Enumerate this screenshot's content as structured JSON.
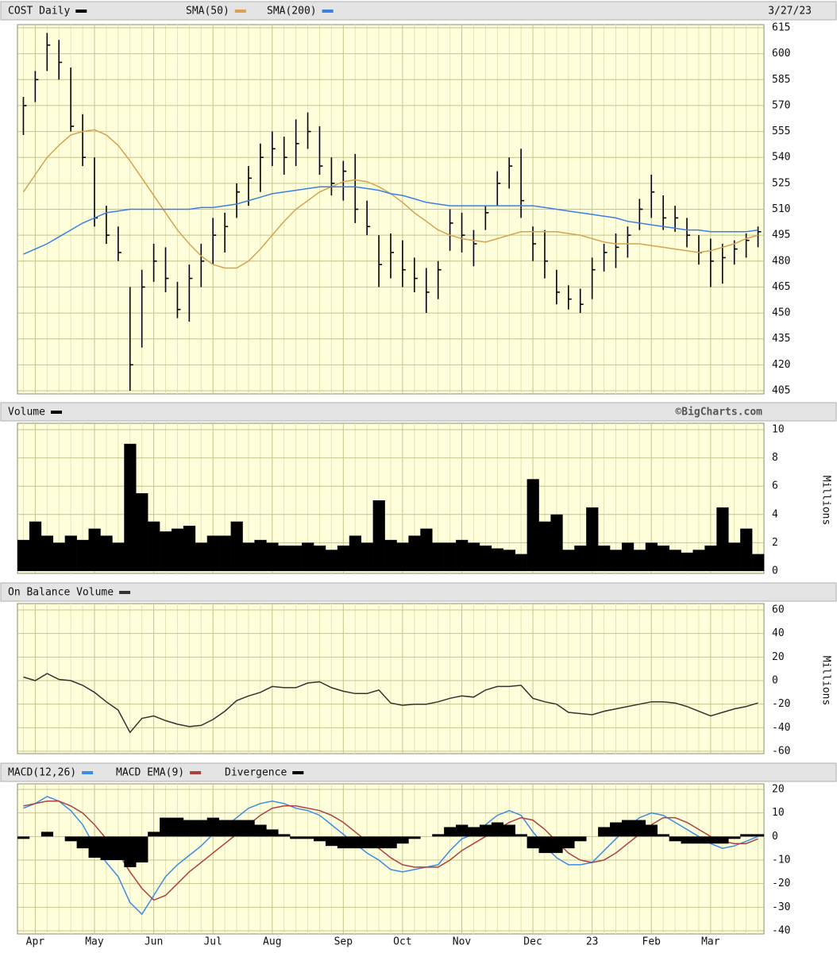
{
  "chart_data": [
    {
      "type": "ohlc",
      "date": "3/27/23",
      "ylim": [
        405,
        615
      ],
      "yticks": [
        405,
        420,
        435,
        450,
        465,
        480,
        495,
        510,
        525,
        540,
        555,
        570,
        585,
        600,
        615
      ],
      "grid": true,
      "series": [
        {
          "name": "COST Daily",
          "color": "#000000",
          "high": [
            575,
            590,
            612,
            608,
            592,
            565,
            540,
            512,
            500,
            465,
            475,
            490,
            488,
            468,
            478,
            490,
            505,
            508,
            525,
            535,
            548,
            555,
            552,
            562,
            566,
            558,
            540,
            538,
            542,
            515,
            495,
            496,
            492,
            482,
            476,
            480,
            510,
            508,
            498,
            512,
            532,
            540,
            545,
            500,
            498,
            475,
            466,
            464,
            482,
            490,
            496,
            500,
            516,
            530,
            518,
            512,
            505,
            495,
            493,
            490,
            492,
            496,
            500
          ],
          "low": [
            553,
            572,
            590,
            585,
            555,
            535,
            500,
            490,
            480,
            405,
            430,
            468,
            462,
            447,
            445,
            465,
            478,
            485,
            505,
            512,
            520,
            535,
            530,
            535,
            545,
            530,
            518,
            515,
            502,
            495,
            465,
            470,
            465,
            462,
            450,
            458,
            486,
            485,
            477,
            498,
            512,
            522,
            505,
            480,
            470,
            455,
            452,
            450,
            458,
            474,
            476,
            482,
            498,
            505,
            498,
            497,
            488,
            478,
            465,
            467,
            478,
            482,
            488
          ],
          "close": [
            570,
            585,
            605,
            595,
            558,
            540,
            505,
            495,
            485,
            420,
            465,
            480,
            470,
            452,
            470,
            480,
            495,
            500,
            520,
            528,
            540,
            545,
            540,
            548,
            555,
            535,
            525,
            532,
            510,
            500,
            478,
            485,
            475,
            470,
            462,
            475,
            502,
            495,
            490,
            508,
            525,
            535,
            515,
            490,
            480,
            462,
            458,
            455,
            475,
            485,
            488,
            495,
            510,
            520,
            505,
            505,
            495,
            485,
            480,
            482,
            487,
            492,
            497
          ]
        },
        {
          "name": "SMA(50)",
          "color": "#d8a24e",
          "values": [
            520,
            530,
            540,
            547,
            553,
            555,
            556,
            553,
            547,
            538,
            528,
            518,
            508,
            498,
            490,
            483,
            478,
            476,
            476,
            480,
            487,
            495,
            503,
            510,
            515,
            520,
            523,
            526,
            527,
            526,
            523,
            519,
            514,
            508,
            503,
            498,
            495,
            493,
            492,
            491,
            493,
            495,
            497,
            497,
            497,
            497,
            496,
            495,
            493,
            491,
            490,
            490,
            490,
            489,
            488,
            487,
            486,
            485,
            486,
            488,
            490,
            493,
            495
          ]
        },
        {
          "name": "SMA(200)",
          "color": "#3a80e4",
          "values": [
            484,
            487,
            490,
            494,
            498,
            502,
            505,
            508,
            509,
            510,
            510,
            510,
            510,
            510,
            510,
            511,
            511,
            512,
            513,
            515,
            517,
            519,
            520,
            521,
            522,
            523,
            523,
            523,
            523,
            522,
            521,
            519,
            518,
            516,
            514,
            513,
            512,
            512,
            512,
            512,
            512,
            512,
            512,
            512,
            511,
            510,
            509,
            508,
            507,
            506,
            505,
            503,
            502,
            501,
            500,
            499,
            498,
            498,
            497,
            497,
            497,
            497,
            498
          ]
        }
      ]
    },
    {
      "type": "bar",
      "credit": "©BigCharts.com",
      "y_label": "Millions",
      "ylim": [
        0,
        10
      ],
      "yticks": [
        0,
        2,
        4,
        6,
        8,
        10
      ],
      "grid": true,
      "series": [
        {
          "name": "Volume",
          "color": "#000000",
          "values": [
            2.2,
            3.5,
            2.5,
            2.0,
            2.5,
            2.2,
            3.0,
            2.5,
            2.0,
            9.0,
            5.5,
            3.5,
            2.8,
            3.0,
            3.2,
            2.0,
            2.5,
            2.5,
            3.5,
            2.0,
            2.2,
            2.0,
            1.8,
            1.8,
            2.0,
            1.8,
            1.5,
            1.8,
            2.5,
            2.0,
            5.0,
            2.2,
            2.0,
            2.5,
            3.0,
            2.0,
            2.0,
            2.2,
            2.0,
            1.8,
            1.6,
            1.5,
            1.2,
            6.5,
            3.5,
            4.0,
            1.5,
            1.8,
            4.5,
            1.8,
            1.5,
            2.0,
            1.5,
            2.0,
            1.8,
            1.5,
            1.3,
            1.5,
            1.8,
            4.5,
            2.0,
            3.0,
            1.2
          ]
        }
      ]
    },
    {
      "type": "line",
      "y_label": "Millions",
      "ylim": [
        -60,
        60
      ],
      "yticks": [
        -60,
        -40,
        -20,
        0,
        20,
        40,
        60
      ],
      "grid": true,
      "series": [
        {
          "name": "On Balance Volume",
          "color": "#333333",
          "values": [
            3,
            0,
            6,
            1,
            0,
            -4,
            -10,
            -18,
            -25,
            -44,
            -32,
            -30,
            -34,
            -37,
            -39,
            -38,
            -33,
            -26,
            -17,
            -13,
            -10,
            -5,
            -6,
            -6,
            -2,
            -1,
            -6,
            -9,
            -11,
            -11,
            -8,
            -19,
            -21,
            -20,
            -20,
            -18,
            -15,
            -13,
            -14,
            -8,
            -5,
            -5,
            -4,
            -15,
            -18,
            -20,
            -27,
            -28,
            -29,
            -26,
            -24,
            -22,
            -20,
            -18,
            -18,
            -19,
            -22,
            -26,
            -30,
            -27,
            -24,
            -22,
            -19
          ]
        }
      ]
    },
    {
      "type": "line",
      "ylim": [
        -40,
        20
      ],
      "yticks": [
        -40,
        -30,
        -20,
        -10,
        0,
        10,
        20
      ],
      "grid": true,
      "categories": [
        null,
        "Apr",
        null,
        null,
        null,
        null,
        "May",
        null,
        null,
        null,
        null,
        "Jun",
        null,
        null,
        null,
        null,
        "Jul",
        null,
        null,
        null,
        null,
        "Aug",
        null,
        null,
        null,
        null,
        null,
        "Sep",
        null,
        null,
        null,
        null,
        "Oct",
        null,
        null,
        null,
        null,
        "Nov",
        null,
        null,
        null,
        null,
        null,
        "Dec",
        null,
        null,
        null,
        null,
        "23",
        null,
        null,
        null,
        null,
        "Feb",
        null,
        null,
        null,
        null,
        "Mar",
        null,
        null,
        null,
        null
      ],
      "series": [
        {
          "name": "MACD(12,26)",
          "color": "#3a8ce6",
          "values": [
            12,
            14,
            17,
            15,
            11,
            5,
            -4,
            -11,
            -17,
            -28,
            -33,
            -25,
            -17,
            -12,
            -8,
            -4,
            1,
            4,
            8,
            12,
            14,
            15,
            14,
            12,
            11,
            9,
            5,
            1,
            -3,
            -7,
            -10,
            -14,
            -15,
            -14,
            -13,
            -12,
            -6,
            -1,
            1,
            5,
            9,
            11,
            9,
            2,
            -4,
            -9,
            -12,
            -12,
            -11,
            -6,
            -1,
            4,
            8,
            10,
            9,
            6,
            3,
            0,
            -3,
            -5,
            -4,
            -2,
            0
          ]
        },
        {
          "name": "MACD EMA(9)",
          "color": "#b04040",
          "values": [
            13,
            14,
            15,
            15,
            13,
            10,
            5,
            -1,
            -7,
            -15,
            -22,
            -27,
            -25,
            -20,
            -15,
            -11,
            -7,
            -3,
            1,
            5,
            9,
            12,
            13,
            13,
            12,
            11,
            9,
            6,
            2,
            -2,
            -5,
            -9,
            -12,
            -13,
            -13,
            -13,
            -10,
            -6,
            -3,
            0,
            3,
            6,
            8,
            7,
            3,
            -2,
            -7,
            -10,
            -11,
            -10,
            -7,
            -3,
            1,
            5,
            8,
            8,
            6,
            3,
            0,
            -2,
            -3,
            -3,
            -1
          ]
        },
        {
          "name": "Divergence",
          "color": "#000000",
          "type": "bar",
          "values": [
            -1,
            0,
            2,
            0,
            -2,
            -5,
            -9,
            -10,
            -10,
            -13,
            -11,
            2,
            8,
            8,
            7,
            7,
            8,
            7,
            7,
            7,
            5,
            3,
            1,
            -1,
            -1,
            -2,
            -4,
            -5,
            -5,
            -5,
            -5,
            -5,
            -3,
            -1,
            0,
            1,
            4,
            5,
            4,
            5,
            6,
            5,
            1,
            -5,
            -7,
            -7,
            -5,
            -2,
            0,
            4,
            6,
            7,
            7,
            5,
            1,
            -2,
            -3,
            -3,
            -3,
            -3,
            -1,
            1,
            1
          ]
        }
      ]
    }
  ]
}
